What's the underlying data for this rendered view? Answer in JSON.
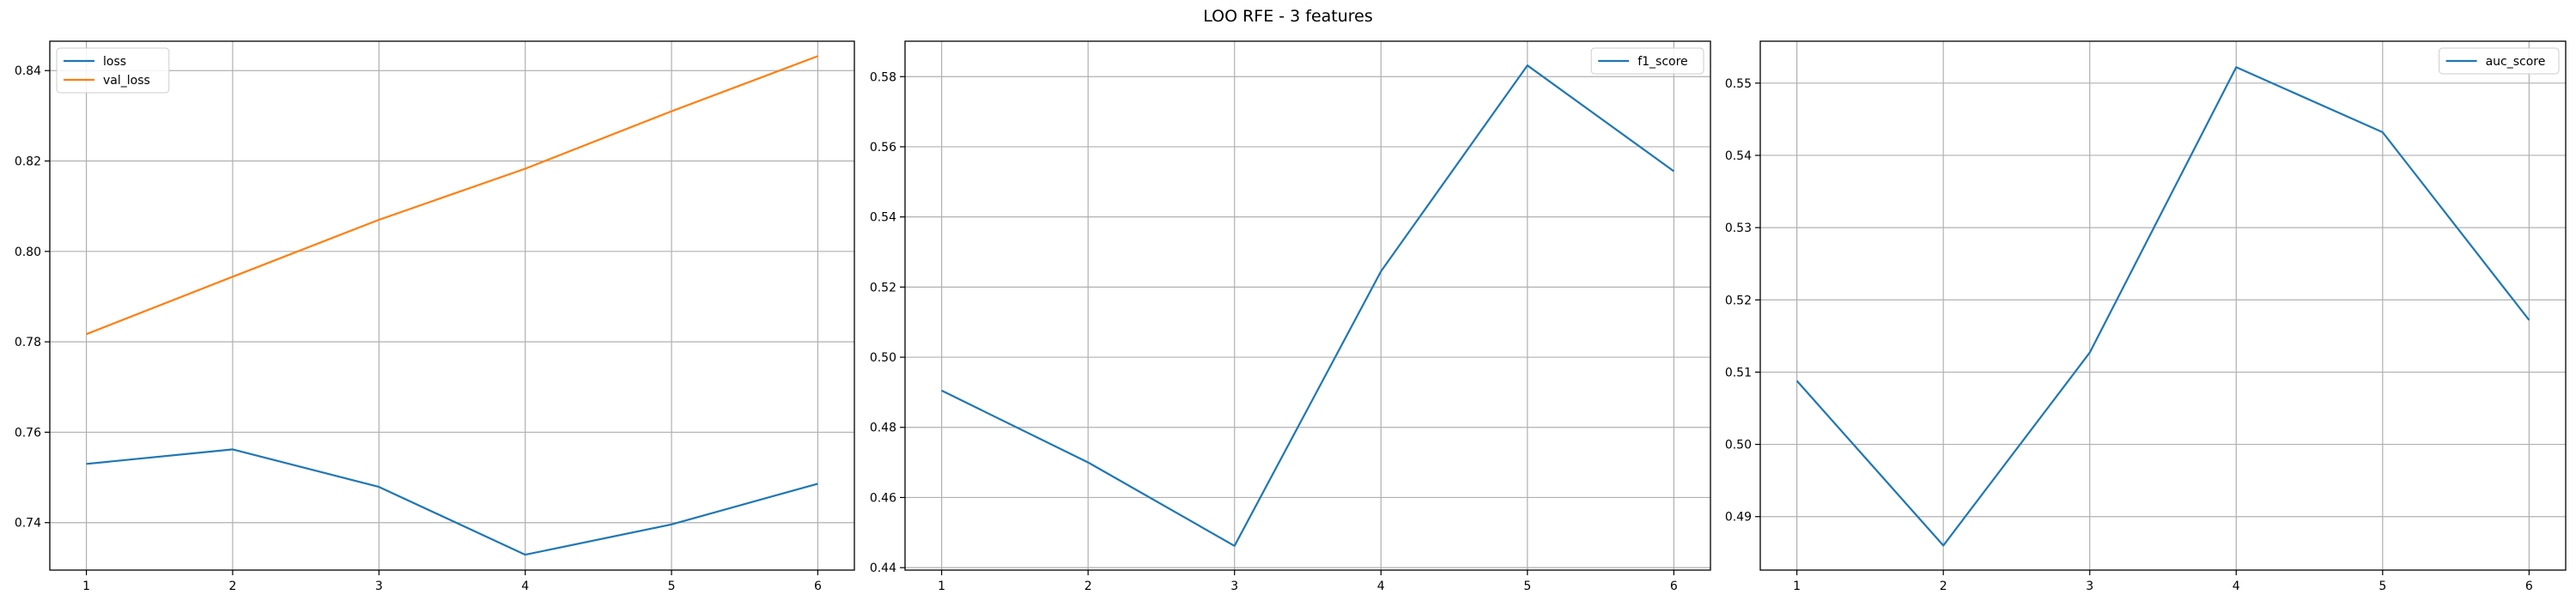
{
  "figure": {
    "title": "LOO RFE - 3 features"
  },
  "colors": {
    "blue": "#1f77b4",
    "orange": "#ff7f0e",
    "grid": "#b0b0b0",
    "axis": "#000000"
  },
  "chart_data": [
    {
      "type": "line",
      "x": [
        1,
        2,
        3,
        4,
        5,
        6
      ],
      "xticks": [
        1,
        2,
        3,
        4,
        5,
        6
      ],
      "yticks": [
        0.74,
        0.76,
        0.78,
        0.8,
        0.82,
        0.84
      ],
      "ytick_labels": [
        "0.74",
        "0.76",
        "0.78",
        "0.80",
        "0.82",
        "0.84"
      ],
      "xlim": [
        0.75,
        6.25
      ],
      "ylim": [
        0.7295,
        0.8465
      ],
      "grid": true,
      "legend_position": "upper left",
      "series": [
        {
          "name": "loss",
          "color": "#1f77b4",
          "values": [
            0.753,
            0.7562,
            0.7479,
            0.7329,
            0.7396,
            0.7486
          ]
        },
        {
          "name": "val_loss",
          "color": "#ff7f0e",
          "values": [
            0.7817,
            0.7944,
            0.807,
            0.8183,
            0.831,
            0.8432
          ]
        }
      ]
    },
    {
      "type": "line",
      "x": [
        1,
        2,
        3,
        4,
        5,
        6
      ],
      "xticks": [
        1,
        2,
        3,
        4,
        5,
        6
      ],
      "yticks": [
        0.44,
        0.46,
        0.48,
        0.5,
        0.52,
        0.54,
        0.56,
        0.58
      ],
      "ytick_labels": [
        "0.44",
        "0.46",
        "0.48",
        "0.50",
        "0.52",
        "0.54",
        "0.56",
        "0.58"
      ],
      "xlim": [
        0.75,
        6.25
      ],
      "ylim": [
        0.4393,
        0.5901
      ],
      "grid": true,
      "legend_position": "upper right",
      "series": [
        {
          "name": "f1_score",
          "color": "#1f77b4",
          "values": [
            0.4905,
            0.47,
            0.4462,
            0.5245,
            0.5832,
            0.553
          ]
        }
      ]
    },
    {
      "type": "line",
      "x": [
        1,
        2,
        3,
        4,
        5,
        6
      ],
      "xticks": [
        1,
        2,
        3,
        4,
        5,
        6
      ],
      "yticks": [
        0.49,
        0.5,
        0.51,
        0.52,
        0.53,
        0.54,
        0.55
      ],
      "ytick_labels": [
        "0.49",
        "0.50",
        "0.51",
        "0.52",
        "0.53",
        "0.54",
        "0.55"
      ],
      "xlim": [
        0.75,
        6.25
      ],
      "ylim": [
        0.4826,
        0.5558
      ],
      "grid": true,
      "legend_position": "upper right",
      "series": [
        {
          "name": "auc_score",
          "color": "#1f77b4",
          "values": [
            0.5088,
            0.486,
            0.5127,
            0.5522,
            0.5432,
            0.5172
          ]
        }
      ]
    }
  ]
}
